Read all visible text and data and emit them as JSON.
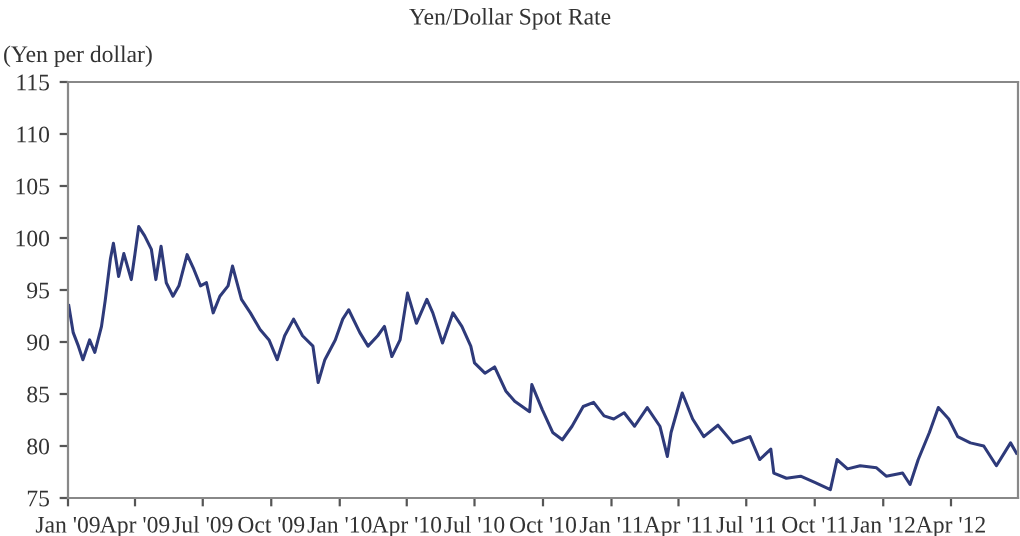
{
  "chart_data": {
    "type": "line",
    "title": "Yen/Dollar Spot Rate",
    "ylabel": "(Yen per dollar)",
    "x": [
      "2009-01-02",
      "2009-01-08",
      "2009-01-15",
      "2009-01-21",
      "2009-01-30",
      "2009-02-06",
      "2009-02-15",
      "2009-02-20",
      "2009-02-27",
      "2009-03-03",
      "2009-03-10",
      "2009-03-17",
      "2009-03-27",
      "2009-04-01",
      "2009-04-06",
      "2009-04-14",
      "2009-04-23",
      "2009-04-29",
      "2009-05-06",
      "2009-05-13",
      "2009-05-22",
      "2009-05-30",
      "2009-06-10",
      "2009-06-19",
      "2009-06-28",
      "2009-07-06",
      "2009-07-15",
      "2009-07-24",
      "2009-08-04",
      "2009-08-10",
      "2009-08-22",
      "2009-09-03",
      "2009-09-16",
      "2009-09-28",
      "2009-10-09",
      "2009-10-19",
      "2009-10-31",
      "2009-11-12",
      "2009-11-26",
      "2009-12-03",
      "2009-12-12",
      "2009-12-26",
      "2010-01-05",
      "2010-01-13",
      "2010-01-28",
      "2010-02-08",
      "2010-02-21",
      "2010-03-02",
      "2010-03-12",
      "2010-03-23",
      "2010-04-02",
      "2010-04-14",
      "2010-04-28",
      "2010-05-06",
      "2010-05-19",
      "2010-06-02",
      "2010-06-14",
      "2010-06-26",
      "2010-07-01",
      "2010-07-15",
      "2010-07-28",
      "2010-08-12",
      "2010-08-24",
      "2010-09-13",
      "2010-09-16",
      "2010-09-30",
      "2010-10-14",
      "2010-10-27",
      "2010-11-09",
      "2010-11-24",
      "2010-12-08",
      "2010-12-22",
      "2011-01-04",
      "2011-01-18",
      "2011-02-01",
      "2011-02-18",
      "2011-03-07",
      "2011-03-17",
      "2011-03-22",
      "2011-04-06",
      "2011-04-20",
      "2011-05-05",
      "2011-05-24",
      "2011-06-13",
      "2011-06-25",
      "2011-07-06",
      "2011-07-19",
      "2011-08-03",
      "2011-08-07",
      "2011-08-24",
      "2011-09-12",
      "2011-10-01",
      "2011-10-22",
      "2011-10-31",
      "2011-11-14",
      "2011-12-01",
      "2011-12-23",
      "2012-01-05",
      "2012-01-27",
      "2012-02-06",
      "2012-02-17",
      "2012-03-03",
      "2012-03-15",
      "2012-03-29",
      "2012-04-10",
      "2012-04-27",
      "2012-05-15",
      "2012-06-01",
      "2012-06-20",
      "2012-06-28"
    ],
    "series": [
      {
        "color": "#2e3a7a",
        "values": [
          93.5,
          90.9,
          89.6,
          88.3,
          90.2,
          89.0,
          91.5,
          94.0,
          98.0,
          99.5,
          96.3,
          98.5,
          96.0,
          98.5,
          101.1,
          100.2,
          98.9,
          96.0,
          99.2,
          95.7,
          94.4,
          95.4,
          98.4,
          97.0,
          95.4,
          95.7,
          92.8,
          94.4,
          95.4,
          97.3,
          94.1,
          92.8,
          91.2,
          90.2,
          88.3,
          90.6,
          92.2,
          90.6,
          89.6,
          86.1,
          88.3,
          90.2,
          92.2,
          93.1,
          90.9,
          89.6,
          90.6,
          91.5,
          88.6,
          90.2,
          94.7,
          91.8,
          94.1,
          92.8,
          89.9,
          92.8,
          91.5,
          89.6,
          88.0,
          87.0,
          87.6,
          85.3,
          84.3,
          83.3,
          85.9,
          83.5,
          81.3,
          80.6,
          81.9,
          83.8,
          84.2,
          82.9,
          82.6,
          83.2,
          81.9,
          83.7,
          81.9,
          79.0,
          81.3,
          85.1,
          82.6,
          80.9,
          82.0,
          80.3,
          80.6,
          80.9,
          78.7,
          79.7,
          77.4,
          76.9,
          77.1,
          76.5,
          75.8,
          78.7,
          77.8,
          78.1,
          77.9,
          77.1,
          77.4,
          76.3,
          78.7,
          81.3,
          83.7,
          82.6,
          80.9,
          80.3,
          80.0,
          78.1,
          80.3,
          79.3
        ]
      }
    ],
    "xlim": [
      "2009-01-01",
      "2012-06-30"
    ],
    "xticks": [
      {
        "value": "2009-01-01",
        "label": "Jan '09"
      },
      {
        "value": "2009-04-01",
        "label": "Apr '09"
      },
      {
        "value": "2009-07-01",
        "label": "Jul '09"
      },
      {
        "value": "2009-10-01",
        "label": "Oct '09"
      },
      {
        "value": "2010-01-01",
        "label": "Jan '10"
      },
      {
        "value": "2010-04-01",
        "label": "Apr '10"
      },
      {
        "value": "2010-07-01",
        "label": "Jul '10"
      },
      {
        "value": "2010-10-01",
        "label": "Oct '10"
      },
      {
        "value": "2011-01-01",
        "label": "Jan '11"
      },
      {
        "value": "2011-04-01",
        "label": "Apr '11"
      },
      {
        "value": "2011-07-01",
        "label": "Jul '11"
      },
      {
        "value": "2011-10-01",
        "label": "Oct '11"
      },
      {
        "value": "2012-01-01",
        "label": "Jan '12"
      },
      {
        "value": "2012-04-01",
        "label": "Apr '12"
      }
    ],
    "ylim": [
      75,
      115
    ],
    "yticks": [
      75,
      80,
      85,
      90,
      95,
      100,
      105,
      110,
      115
    ],
    "grid": false,
    "legend": false
  }
}
